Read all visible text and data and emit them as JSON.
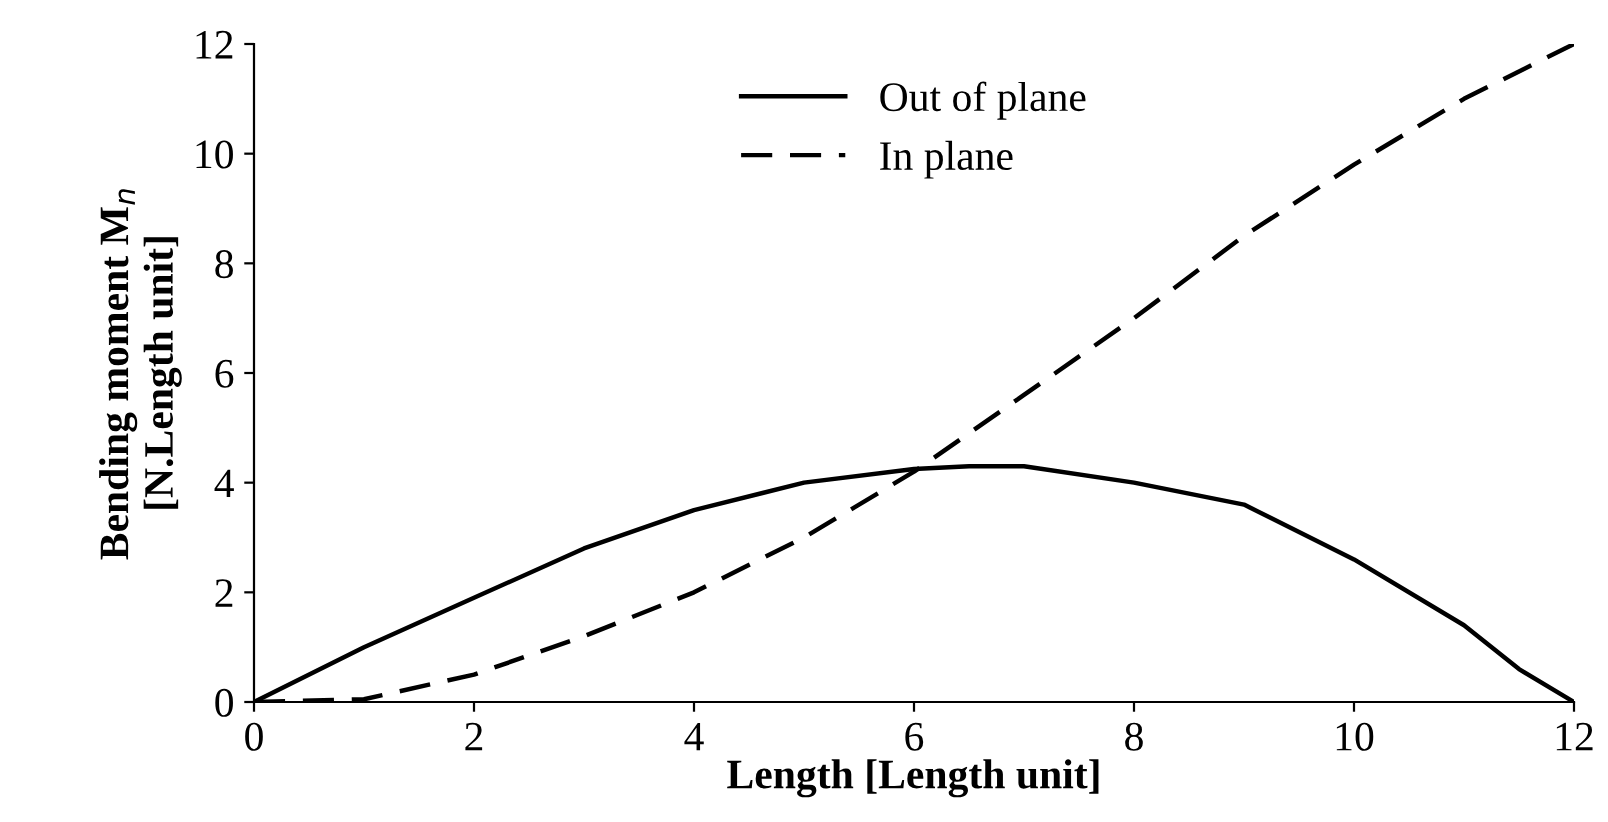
{
  "chart_data": {
    "type": "line",
    "xlabel": "Length [Length unit]",
    "ylabel": "Bending moment M$_{n}$\n[N.Length unit]",
    "xlim": [
      0,
      12
    ],
    "ylim": [
      0,
      12
    ],
    "xticks": [
      0,
      2,
      4,
      6,
      8,
      10,
      12
    ],
    "yticks": [
      0,
      2,
      4,
      6,
      8,
      10,
      12
    ],
    "grid": false,
    "legend": "top",
    "marker": "none",
    "series": [
      {
        "name": "Out of plane",
        "color": "#000000",
        "line_style": "solid",
        "x": [
          0,
          1,
          2,
          3,
          4,
          5,
          6,
          6.5,
          7,
          8,
          9,
          10,
          11,
          11.5,
          12
        ],
        "values": [
          0,
          1.0,
          1.9,
          2.8,
          3.5,
          4.0,
          4.25,
          4.3,
          4.3,
          4.0,
          3.6,
          2.6,
          1.4,
          0.6,
          0
        ]
      },
      {
        "name": "In plane",
        "color": "#000000",
        "line_style": "dashed",
        "x": [
          0,
          1,
          2,
          3,
          4,
          5,
          6,
          7,
          8,
          9,
          10,
          11,
          12
        ],
        "values": [
          0,
          0.05,
          0.5,
          1.2,
          2.0,
          3.0,
          4.2,
          5.6,
          7.0,
          8.5,
          9.8,
          11.0,
          12
        ]
      }
    ]
  }
}
